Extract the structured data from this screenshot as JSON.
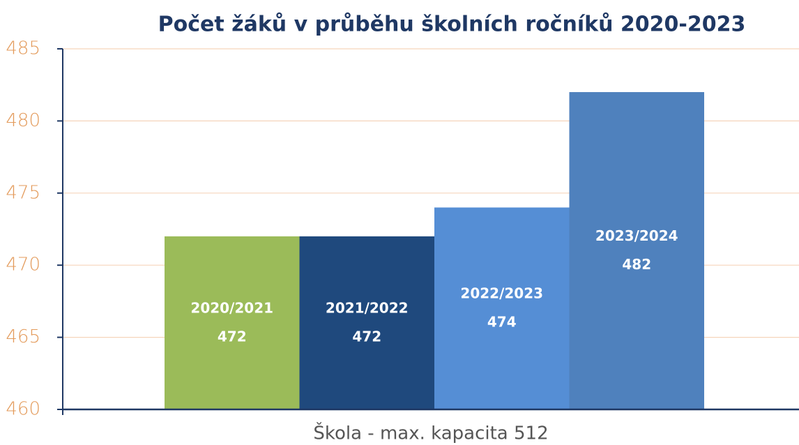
{
  "chart_data": {
    "type": "bar",
    "title": "Počet žáků v průběhu školních ročníků 2020-2023",
    "x_label": "Škola - max. kapacita 512",
    "categories": [
      "2020/2021",
      "2021/2022",
      "2022/2023",
      "2023/2024"
    ],
    "values": [
      472,
      472,
      474,
      482
    ],
    "colors": [
      "#9bbb59",
      "#1f497d",
      "#558ed5",
      "#4f81bd"
    ],
    "ylim": [
      460,
      485
    ],
    "yticks": [
      460,
      465,
      470,
      475,
      480,
      485
    ],
    "grid": true
  }
}
